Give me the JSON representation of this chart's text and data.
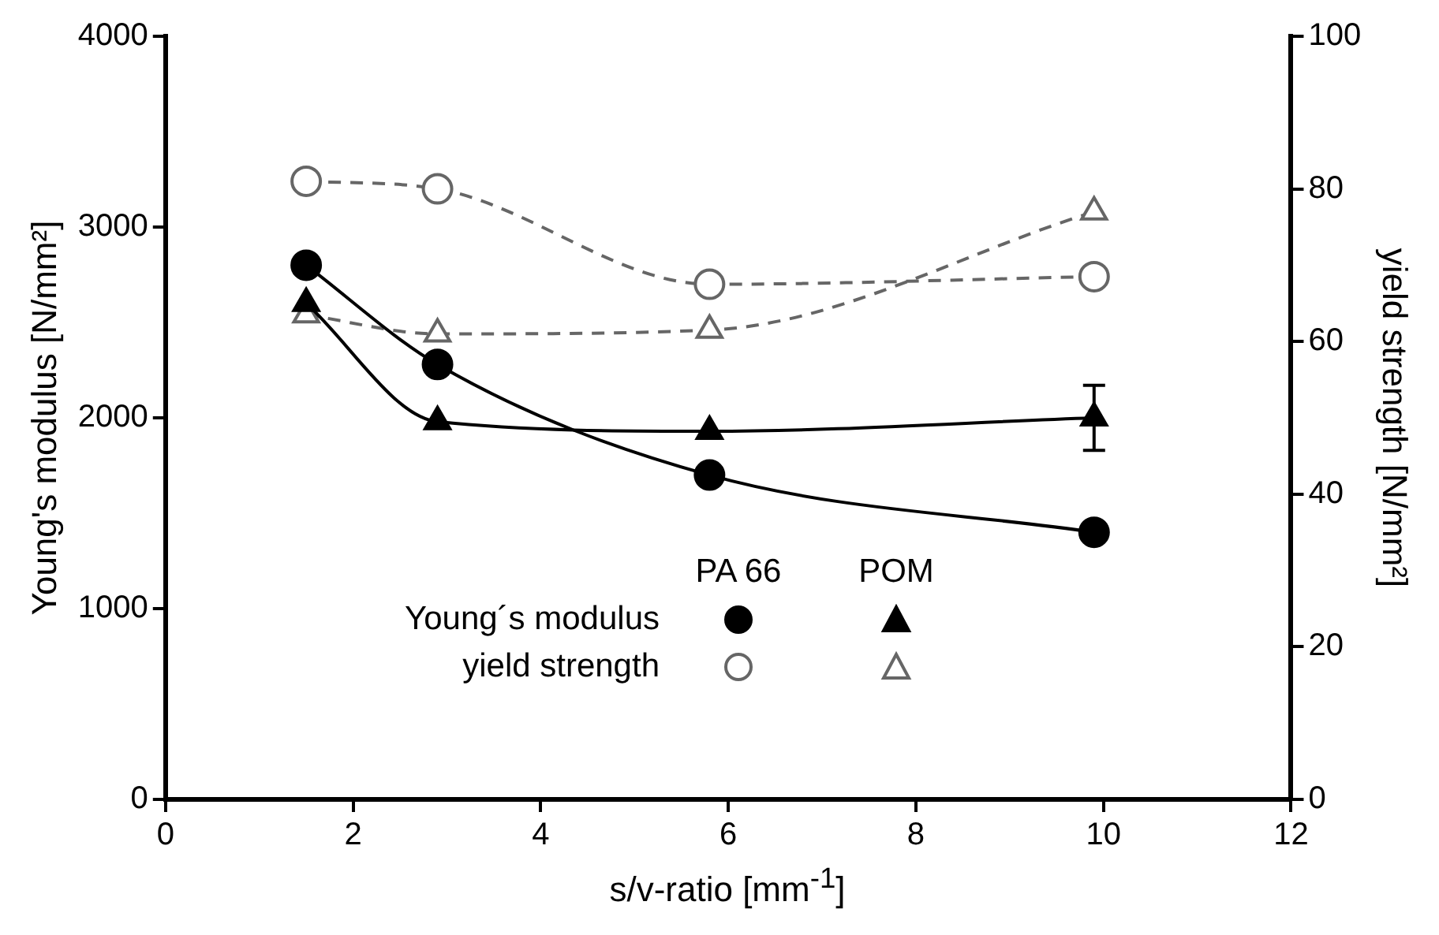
{
  "chart_data": {
    "type": "line",
    "xlabel": "s/v-ratio [mm$^{-1}$]",
    "ylabel": "Young's modulus [N/mm²]",
    "y2label": "yield strength [N/mm²]",
    "xlim": [
      0,
      12
    ],
    "xticks": [
      0,
      2,
      4,
      6,
      8,
      10,
      12
    ],
    "ylim": [
      0,
      4000
    ],
    "yticks": [
      0,
      1000,
      2000,
      3000,
      4000
    ],
    "y2lim": [
      0,
      100
    ],
    "y2ticks": [
      0,
      20,
      40,
      60,
      80,
      100
    ],
    "grid": false,
    "series": [
      {
        "color": "#000000",
        "x": [
          1.5,
          2.9,
          5.8,
          9.9
        ],
        "values": [
          2800,
          2280,
          1700,
          1400
        ],
        "marker": "circle",
        "line_style": "solid"
      },
      {
        "color": "#000000",
        "x": [
          1.5,
          2.9,
          5.8,
          9.9
        ],
        "values": [
          2600,
          1980,
          1930,
          2000
        ],
        "errors": [
          null,
          null,
          null,
          170
        ],
        "marker": "triangle",
        "line_style": "solid"
      },
      {
        "color": "#666666",
        "x": [
          1.5,
          2.9,
          5.8,
          9.9
        ],
        "values": [
          81,
          80,
          67.5,
          68.5
        ],
        "axis": "y2",
        "marker": "circle",
        "line_style": "dashed"
      },
      {
        "color": "#666666",
        "x": [
          1.5,
          2.9,
          5.8,
          9.9
        ],
        "values": [
          63.5,
          61,
          61.5,
          77
        ],
        "axis": "y2",
        "marker": "triangle",
        "line_style": "dashed"
      }
    ],
    "annotations": [
      "PA 66",
      "POM",
      "Young´s modulus",
      "yield strength"
    ]
  }
}
